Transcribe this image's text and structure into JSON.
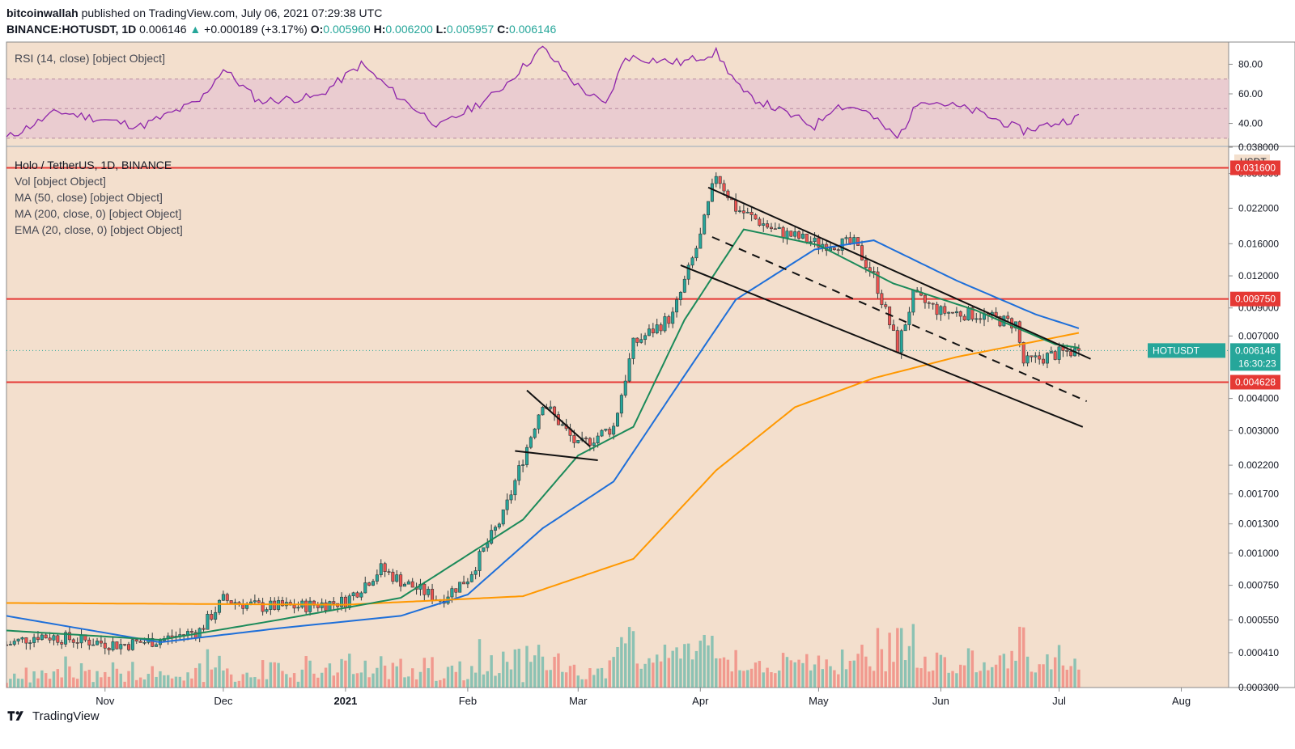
{
  "header": {
    "publisher": "bitcoinwallah",
    "published_text": "published on TradingView.com, July 06, 2021 07:29:38 UTC",
    "symbol": "BINANCE:HOTUSDT, 1D",
    "last": "0.006146",
    "change": "+0.000189 (+3.17%)",
    "o_label": "O:",
    "o": "0.005960",
    "h_label": "H:",
    "h": "0.006200",
    "l_label": "L:",
    "l": "0.005957",
    "c_label": "C:",
    "c": "0.006146"
  },
  "rsi_panel": {
    "legend": "RSI (14, close) [object Object]",
    "ticks": [
      "80.00",
      "60.00",
      "40.00"
    ]
  },
  "price_panel": {
    "legend": [
      "Holo / TetherUS, 1D, BINANCE",
      "Vol [object Object]",
      "MA (50, close) [object Object]",
      "MA (200, close, 0) [object Object]",
      "EMA (20, close, 0) [object Object]"
    ],
    "currency": "USDT",
    "ticks": [
      "0.038000",
      "0.030000",
      "0.022000",
      "0.016000",
      "0.012000",
      "0.009000",
      "0.007000",
      "0.004000",
      "0.003000",
      "0.002200",
      "0.001700",
      "0.001300",
      "0.001000",
      "0.000750",
      "0.000550",
      "0.000410",
      "0.000300"
    ],
    "price_labels": [
      "0.031600",
      "0.009750",
      "0.004628"
    ],
    "current_symbol": "HOTUSDT",
    "current_price": "0.006146",
    "countdown": "16:30:23"
  },
  "x_axis": [
    "Nov",
    "Dec",
    "2021",
    "Feb",
    "Mar",
    "Apr",
    "May",
    "Jun",
    "Jul",
    "Aug"
  ],
  "footer": {
    "brand": "TradingView"
  },
  "colors": {
    "background": "#f3dfcd",
    "rsi_band": "#e8c9d0",
    "rsi_line": "#8e24aa",
    "ma50": "#1e6fd9",
    "ma200": "#ff9800",
    "ema20": "#1b8a5a",
    "up": "#26a69a",
    "down": "#ef5350",
    "resistance": "#e53935"
  },
  "chart_data": {
    "type": "candlestick",
    "title": "Holo / TetherUS, 1D, BINANCE",
    "ylabel": "USDT",
    "y_scale": "log",
    "ylim": [
      0.0003,
      0.038
    ],
    "xlim": [
      "2020-10-07",
      "2021-08-13"
    ],
    "horizontal_levels": [
      0.0316,
      0.00975,
      0.004628
    ],
    "last_price": 0.006146,
    "daily_close": [
      [
        "2020-10-07",
        0.00044
      ],
      [
        "2020-10-15",
        0.00048
      ],
      [
        "2020-10-25",
        0.00046
      ],
      [
        "2020-11-05",
        0.00044
      ],
      [
        "2020-11-15",
        0.00046
      ],
      [
        "2020-11-25",
        0.0005
      ],
      [
        "2020-12-01",
        0.00066
      ],
      [
        "2020-12-10",
        0.00062
      ],
      [
        "2020-12-20",
        0.00062
      ],
      [
        "2021-01-01",
        0.00065
      ],
      [
        "2021-01-10",
        0.00087
      ],
      [
        "2021-01-15",
        0.00078
      ],
      [
        "2021-01-25",
        0.00066
      ],
      [
        "2021-02-01",
        0.0008
      ],
      [
        "2021-02-10",
        0.0014
      ],
      [
        "2021-02-20",
        0.0039
      ],
      [
        "2021-03-01",
        0.0026
      ],
      [
        "2021-03-10",
        0.0031
      ],
      [
        "2021-03-15",
        0.0065
      ],
      [
        "2021-03-25",
        0.0084
      ],
      [
        "2021-04-01",
        0.017
      ],
      [
        "2021-04-05",
        0.03
      ],
      [
        "2021-04-10",
        0.022
      ],
      [
        "2021-04-20",
        0.018
      ],
      [
        "2021-05-01",
        0.016
      ],
      [
        "2021-05-10",
        0.016
      ],
      [
        "2021-05-15",
        0.012
      ],
      [
        "2021-05-21",
        0.0063
      ],
      [
        "2021-05-25",
        0.01
      ],
      [
        "2021-06-01",
        0.0087
      ],
      [
        "2021-06-10",
        0.0085
      ],
      [
        "2021-06-20",
        0.0078
      ],
      [
        "2021-06-22",
        0.0055
      ],
      [
        "2021-07-01",
        0.006
      ],
      [
        "2021-07-06",
        0.006146
      ]
    ],
    "series": [
      {
        "name": "MA (50, close)",
        "values": [
          [
            "2020-10-07",
            0.00057
          ],
          [
            "2020-11-15",
            0.00045
          ],
          [
            "2020-12-15",
            0.00051
          ],
          [
            "2021-01-15",
            0.00057
          ],
          [
            "2021-02-01",
            0.00069
          ],
          [
            "2021-02-20",
            0.00125
          ],
          [
            "2021-03-10",
            0.0019
          ],
          [
            "2021-03-25",
            0.0042
          ],
          [
            "2021-04-10",
            0.0097
          ],
          [
            "2021-04-30",
            0.0152
          ],
          [
            "2021-05-15",
            0.0165
          ],
          [
            "2021-06-05",
            0.0115
          ],
          [
            "2021-06-25",
            0.0085
          ],
          [
            "2021-07-06",
            0.0075
          ]
        ]
      },
      {
        "name": "MA (200, close, 0)",
        "values": [
          [
            "2020-10-07",
            0.00064
          ],
          [
            "2021-01-01",
            0.00063
          ],
          [
            "2021-02-15",
            0.00068
          ],
          [
            "2021-03-15",
            0.00095
          ],
          [
            "2021-04-05",
            0.0021
          ],
          [
            "2021-04-25",
            0.0037
          ],
          [
            "2021-05-15",
            0.0048
          ],
          [
            "2021-06-05",
            0.0058
          ],
          [
            "2021-07-06",
            0.0072
          ]
        ]
      },
      {
        "name": "EMA (20, close, 0)",
        "values": [
          [
            "2020-10-07",
            0.0005
          ],
          [
            "2020-11-15",
            0.00046
          ],
          [
            "2020-12-15",
            0.00055
          ],
          [
            "2021-01-15",
            0.00067
          ],
          [
            "2021-02-15",
            0.00135
          ],
          [
            "2021-03-01",
            0.0024
          ],
          [
            "2021-03-15",
            0.0031
          ],
          [
            "2021-03-28",
            0.0081
          ],
          [
            "2021-04-12",
            0.0182
          ],
          [
            "2021-05-01",
            0.0158
          ],
          [
            "2021-05-20",
            0.0112
          ],
          [
            "2021-06-10",
            0.0088
          ],
          [
            "2021-06-30",
            0.0065
          ],
          [
            "2021-07-06",
            0.0063
          ]
        ]
      },
      {
        "name": "RSI (14, close)",
        "values": [
          [
            "2020-10-07",
            30
          ],
          [
            "2020-10-20",
            48
          ],
          [
            "2020-11-10",
            38
          ],
          [
            "2020-11-25",
            55
          ],
          [
            "2020-12-01",
            77
          ],
          [
            "2020-12-10",
            55
          ],
          [
            "2020-12-25",
            58
          ],
          [
            "2021-01-05",
            80
          ],
          [
            "2021-01-15",
            57
          ],
          [
            "2021-01-25",
            38
          ],
          [
            "2021-02-08",
            60
          ],
          [
            "2021-02-20",
            91
          ],
          [
            "2021-03-01",
            65
          ],
          [
            "2021-03-08",
            52
          ],
          [
            "2021-03-13",
            85
          ],
          [
            "2021-03-27",
            81
          ],
          [
            "2021-04-05",
            88
          ],
          [
            "2021-04-12",
            60
          ],
          [
            "2021-04-30",
            38
          ],
          [
            "2021-05-05",
            52
          ],
          [
            "2021-05-12",
            50
          ],
          [
            "2021-05-21",
            30
          ],
          [
            "2021-05-27",
            57
          ],
          [
            "2021-06-10",
            48
          ],
          [
            "2021-06-22",
            35
          ],
          [
            "2021-07-06",
            44
          ]
        ]
      }
    ],
    "rsi_ylim": [
      25,
      95
    ],
    "rsi_band": [
      30,
      70
    ]
  }
}
